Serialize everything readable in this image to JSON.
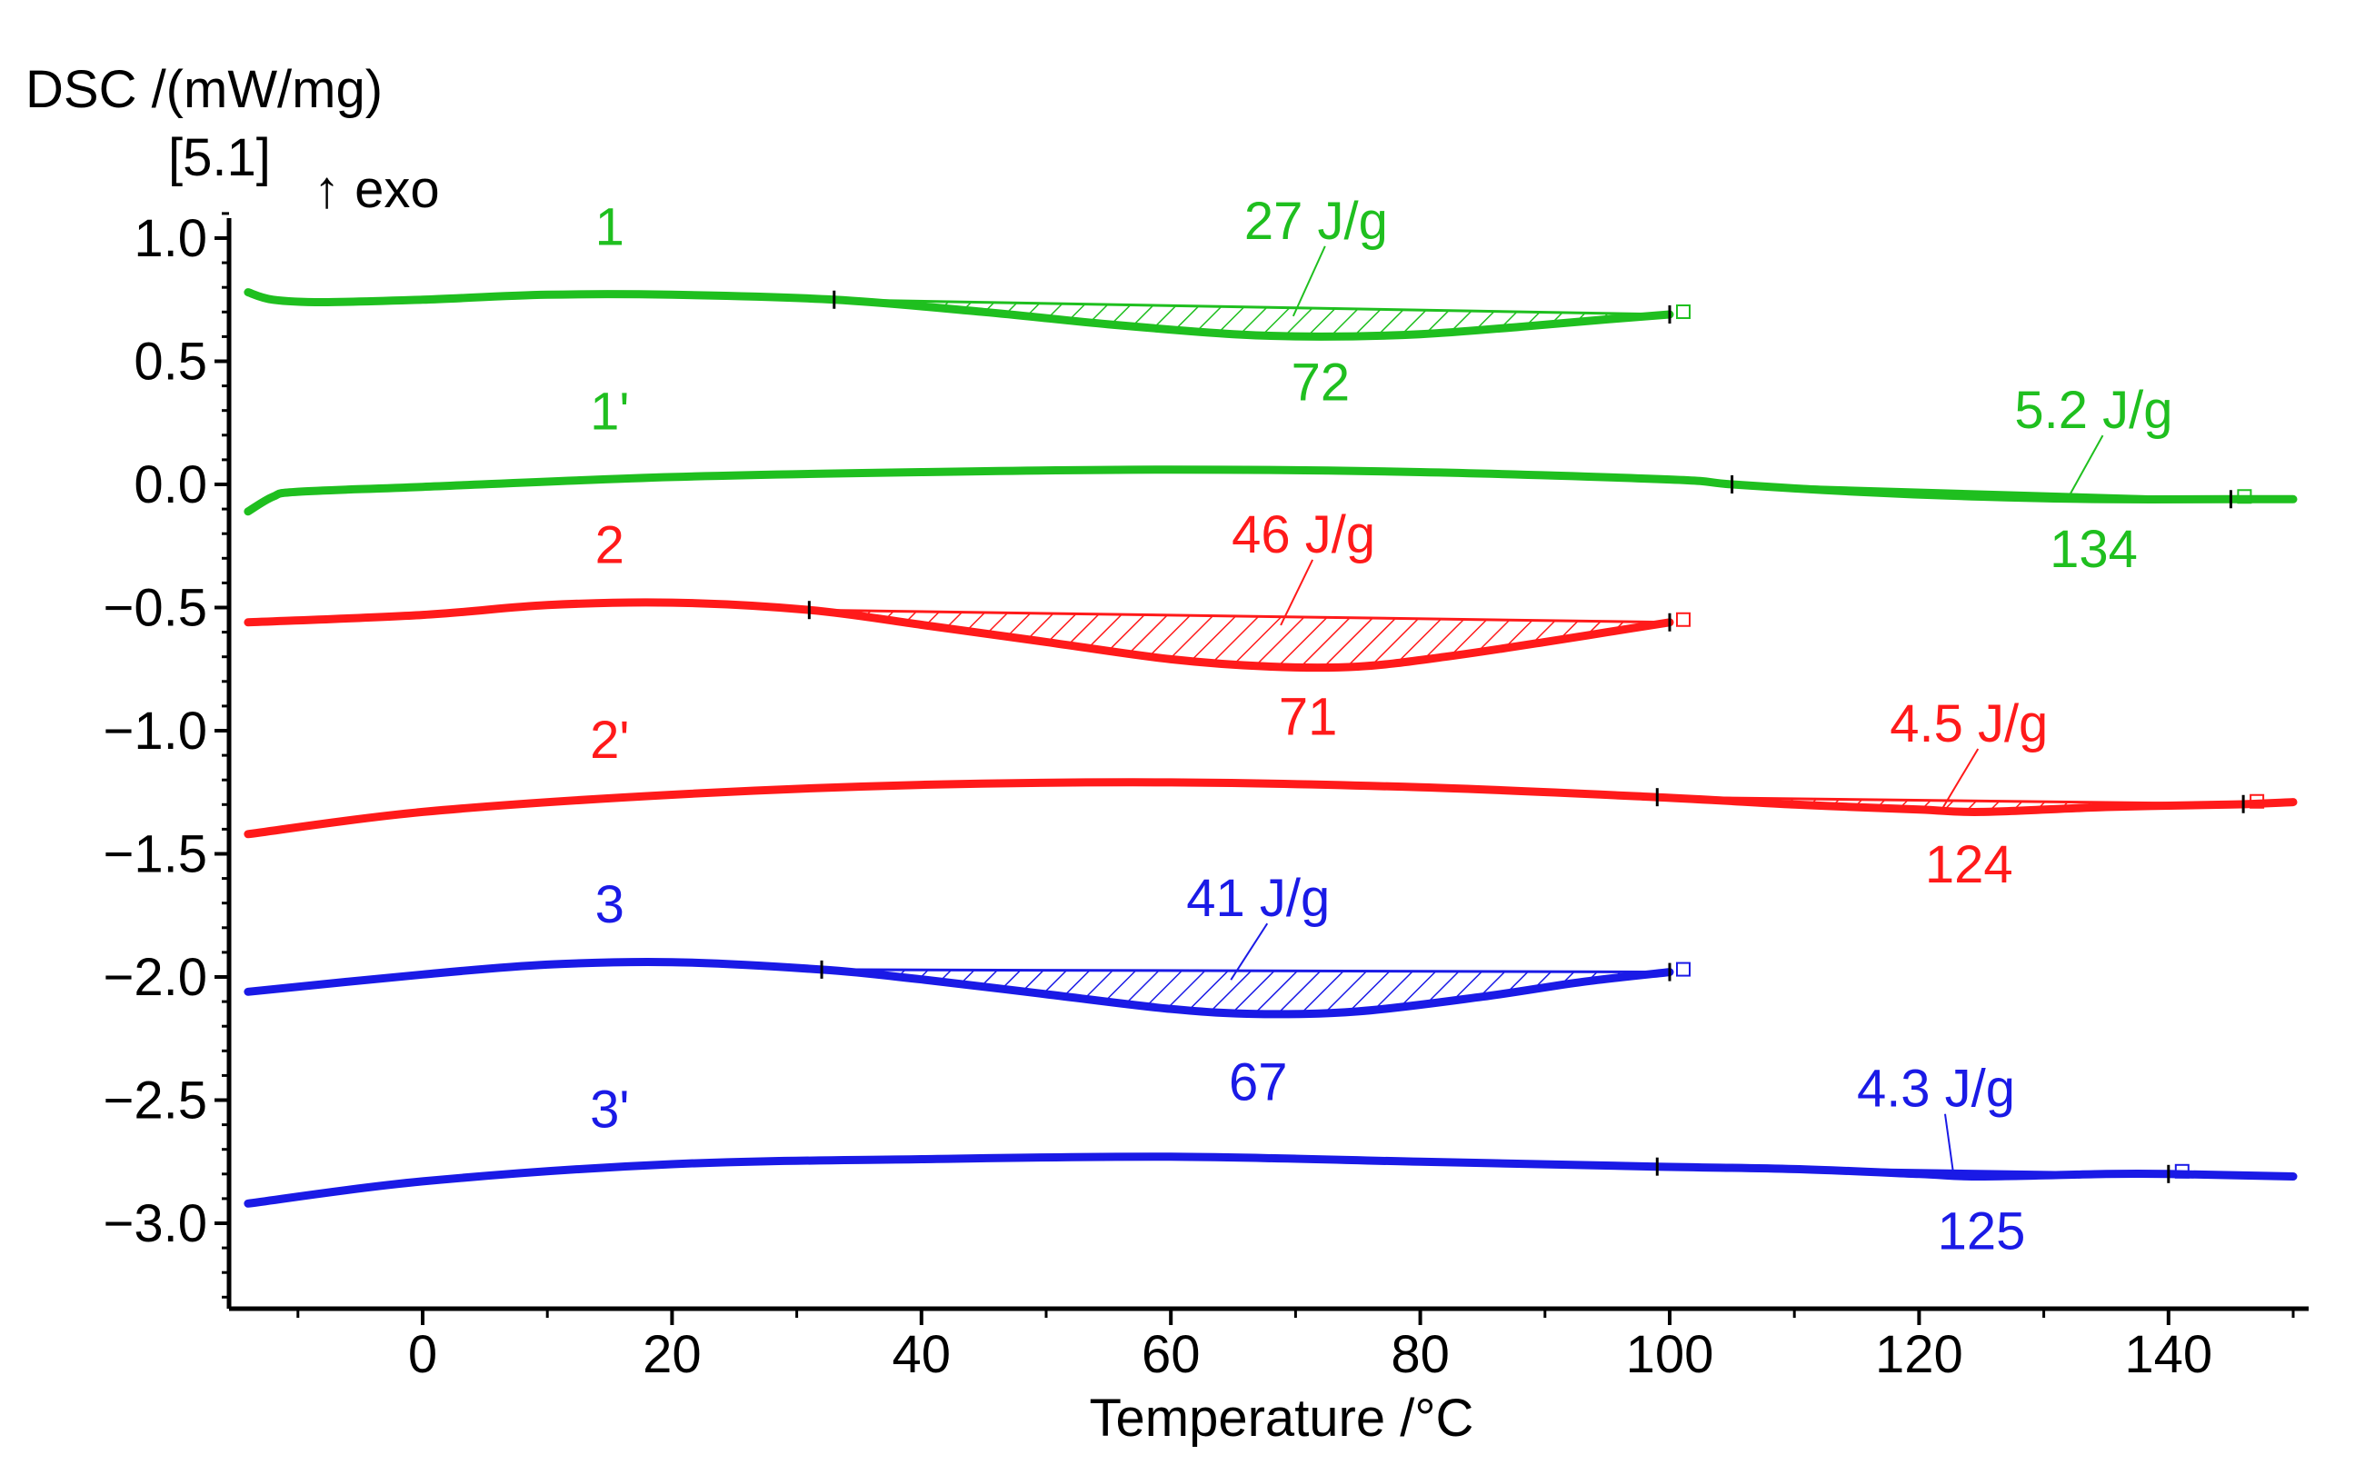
{
  "chart_data": {
    "type": "line",
    "ylabel": "DSC /(mW/mg)",
    "y_scale_note": "[5.1]",
    "direction_note": "↑ exo",
    "xlabel": "Temperature /°C",
    "xlim": [
      -15,
      150
    ],
    "ylim": [
      -3.3,
      1.2
    ],
    "x_ticks": [
      0,
      20,
      40,
      60,
      80,
      100,
      120,
      140
    ],
    "x_tick_labels": [
      "0",
      "20",
      "40",
      "60",
      "80",
      "100",
      "120",
      "140"
    ],
    "y_ticks": [
      1.0,
      0.5,
      0.0,
      -0.5,
      -1.0,
      -1.5,
      -2.0,
      -2.5,
      -3.0
    ],
    "y_tick_labels": [
      "1.0",
      "0.5",
      "0.0",
      "−0.5",
      "−1.0",
      "−1.5",
      "−2.0",
      "−2.5",
      "−3.0"
    ],
    "series": [
      {
        "name": "1",
        "color": "#1fbf1f",
        "points": [
          [
            -14,
            0.78
          ],
          [
            -12,
            0.75
          ],
          [
            -8,
            0.74
          ],
          [
            0,
            0.75
          ],
          [
            10,
            0.77
          ],
          [
            20,
            0.77
          ],
          [
            33,
            0.75
          ],
          [
            45,
            0.7
          ],
          [
            55,
            0.65
          ],
          [
            65,
            0.61
          ],
          [
            72,
            0.6
          ],
          [
            80,
            0.61
          ],
          [
            88,
            0.64
          ],
          [
            95,
            0.67
          ],
          [
            100,
            0.69
          ]
        ],
        "peak": {
          "x": 72,
          "label": "72"
        },
        "enthalpy": {
          "label": "27 J/g",
          "from": 33,
          "to": 100
        }
      },
      {
        "name": "1'",
        "color": "#1fbf1f",
        "points": [
          [
            -14,
            -0.11
          ],
          [
            -12,
            -0.05
          ],
          [
            -10,
            -0.03
          ],
          [
            0,
            -0.01
          ],
          [
            20,
            0.03
          ],
          [
            40,
            0.05
          ],
          [
            60,
            0.06
          ],
          [
            80,
            0.05
          ],
          [
            100,
            0.02
          ],
          [
            105,
            0.0
          ],
          [
            115,
            -0.03
          ],
          [
            125,
            -0.05
          ],
          [
            135,
            -0.06
          ],
          [
            145,
            -0.06
          ],
          [
            150,
            -0.06
          ]
        ],
        "peak": {
          "x": 134,
          "label": "134"
        },
        "enthalpy": {
          "label": "5.2 J/g",
          "from": 105,
          "to": 145
        }
      },
      {
        "name": "2",
        "color": "#ff1a1a",
        "points": [
          [
            -14,
            -0.56
          ],
          [
            0,
            -0.53
          ],
          [
            10,
            -0.49
          ],
          [
            20,
            -0.48
          ],
          [
            31,
            -0.51
          ],
          [
            40,
            -0.57
          ],
          [
            50,
            -0.64
          ],
          [
            60,
            -0.71
          ],
          [
            68,
            -0.74
          ],
          [
            75,
            -0.74
          ],
          [
            82,
            -0.7
          ],
          [
            90,
            -0.64
          ],
          [
            95,
            -0.6
          ],
          [
            100,
            -0.56
          ]
        ],
        "peak": {
          "x": 71,
          "label": "71"
        },
        "enthalpy": {
          "label": "46 J/g",
          "from": 31,
          "to": 100
        }
      },
      {
        "name": "2'",
        "color": "#ff1a1a",
        "points": [
          [
            -14,
            -1.42
          ],
          [
            0,
            -1.33
          ],
          [
            20,
            -1.26
          ],
          [
            40,
            -1.22
          ],
          [
            60,
            -1.21
          ],
          [
            80,
            -1.23
          ],
          [
            99,
            -1.27
          ],
          [
            110,
            -1.3
          ],
          [
            120,
            -1.32
          ],
          [
            125,
            -1.33
          ],
          [
            135,
            -1.31
          ],
          [
            145,
            -1.3
          ],
          [
            150,
            -1.29
          ]
        ],
        "peak": {
          "x": 124,
          "label": "124"
        },
        "enthalpy": {
          "label": "4.5 J/g",
          "from": 99,
          "to": 146
        }
      },
      {
        "name": "3",
        "color": "#1a1ae6",
        "points": [
          [
            -14,
            -2.06
          ],
          [
            0,
            -1.99
          ],
          [
            10,
            -1.95
          ],
          [
            20,
            -1.94
          ],
          [
            32,
            -1.97
          ],
          [
            40,
            -2.01
          ],
          [
            50,
            -2.07
          ],
          [
            60,
            -2.13
          ],
          [
            67,
            -2.15
          ],
          [
            75,
            -2.14
          ],
          [
            85,
            -2.08
          ],
          [
            93,
            -2.02
          ],
          [
            100,
            -1.98
          ]
        ],
        "peak": {
          "x": 67,
          "label": "67"
        },
        "enthalpy": {
          "label": "41 J/g",
          "from": 32,
          "to": 100
        }
      },
      {
        "name": "3'",
        "color": "#1a1ae6",
        "points": [
          [
            -14,
            -2.92
          ],
          [
            0,
            -2.83
          ],
          [
            20,
            -2.76
          ],
          [
            40,
            -2.74
          ],
          [
            60,
            -2.73
          ],
          [
            80,
            -2.75
          ],
          [
            99,
            -2.77
          ],
          [
            110,
            -2.78
          ],
          [
            120,
            -2.8
          ],
          [
            125,
            -2.81
          ],
          [
            135,
            -2.8
          ],
          [
            140,
            -2.8
          ],
          [
            150,
            -2.81
          ]
        ],
        "peak": {
          "x": 125,
          "label": "125"
        },
        "enthalpy": {
          "label": "4.3 J/g",
          "from": 99,
          "to": 140
        }
      }
    ]
  }
}
